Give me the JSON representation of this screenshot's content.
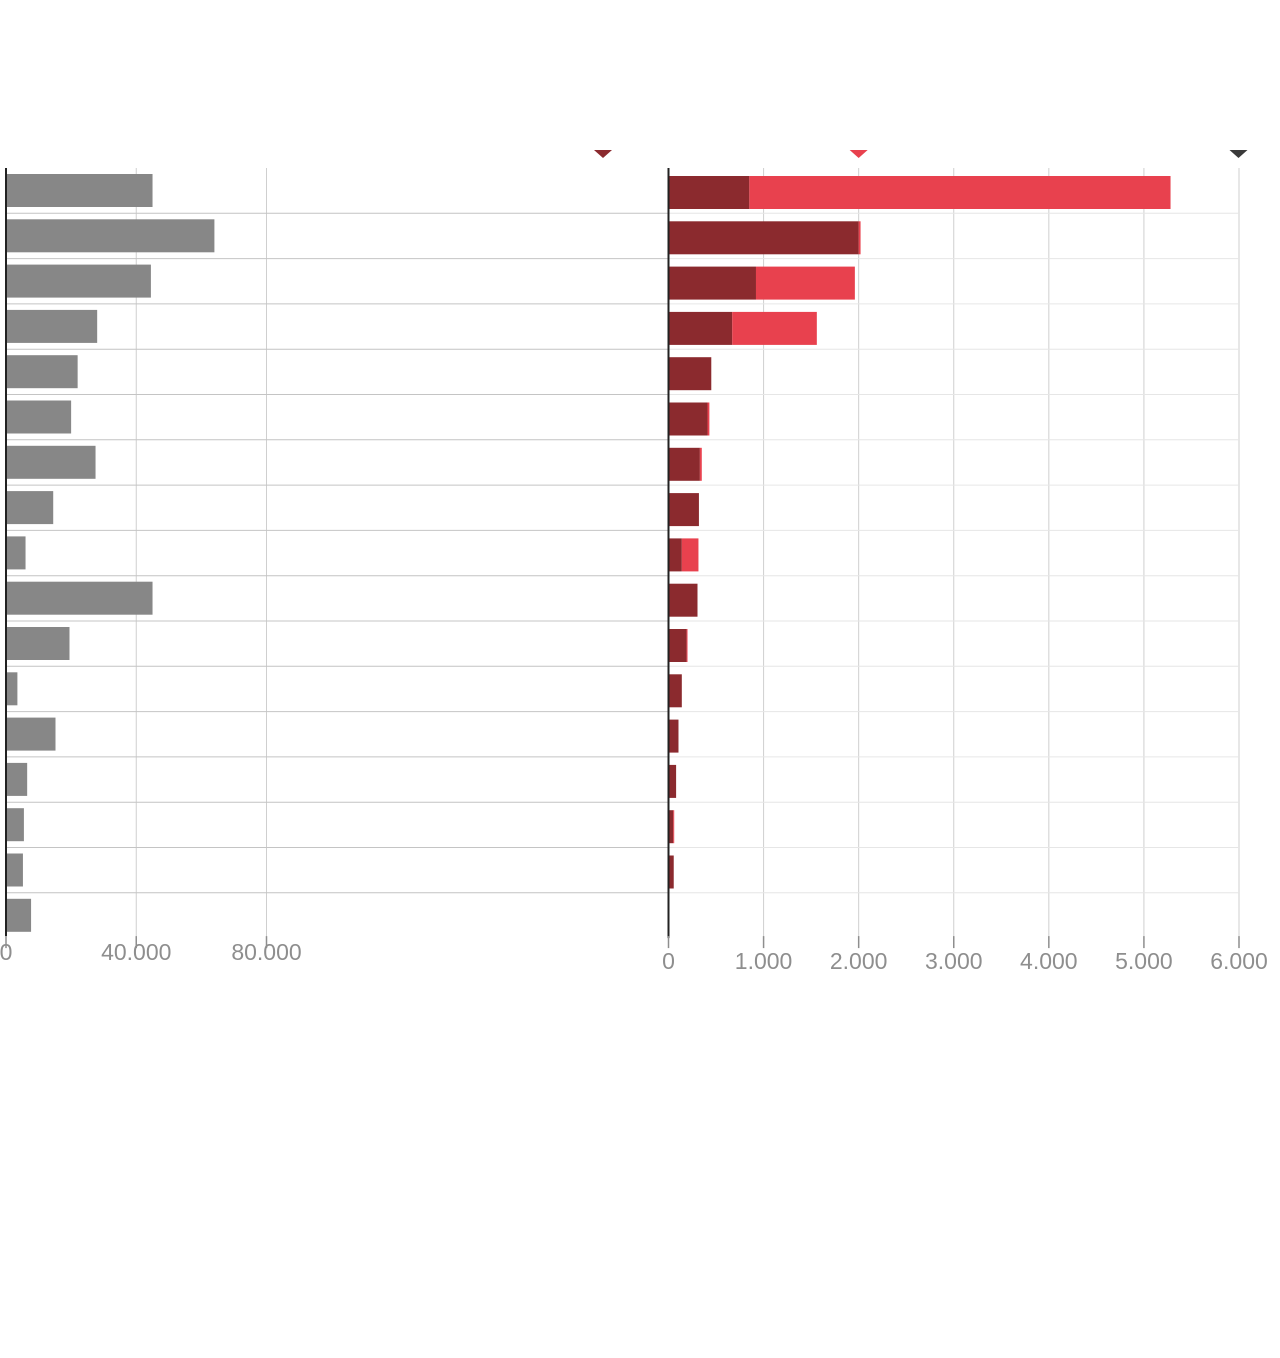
{
  "chart_data": [
    {
      "type": "bar",
      "orientation": "horizontal",
      "title": "",
      "xlabel": "",
      "ylabel": "",
      "xlim": [
        0,
        200000
      ],
      "xticks": [
        0,
        40000,
        80000
      ],
      "tick_labels": [
        "0",
        "40.000",
        "80.000"
      ],
      "grid": true,
      "series": [
        {
          "color": "#878787",
          "values": [
            45000,
            64000,
            44500,
            28000,
            22000,
            20000,
            27500,
            14500,
            6000,
            45000,
            19500,
            3500,
            15200,
            6500,
            5500,
            5200,
            7700
          ]
        }
      ]
    },
    {
      "type": "bar",
      "orientation": "horizontal",
      "stacked": true,
      "title": "",
      "xlabel": "",
      "ylabel": "",
      "xlim": [
        0,
        6000
      ],
      "xticks": [
        0,
        1000,
        2000,
        3000,
        4000,
        5000,
        6000
      ],
      "tick_labels": [
        "0",
        "1.000",
        "2.000",
        "3.000",
        "4.000",
        "5.000",
        "6.000"
      ],
      "grid": true,
      "markers": [
        {
          "color": "#8b2a2e"
        },
        {
          "value": 2000,
          "color": "#e8414e"
        },
        {
          "value": 6000,
          "color": "#3a3a3a"
        }
      ],
      "series": [
        {
          "color": "#8b2a2e",
          "values": [
            850,
            2000,
            920,
            670,
            450,
            410,
            330,
            320,
            140,
            305,
            190,
            140,
            105,
            80,
            50,
            55,
            10
          ]
        },
        {
          "color": "#e8414e",
          "values": [
            4430,
            20,
            1040,
            890,
            0,
            20,
            20,
            0,
            175,
            0,
            10,
            0,
            0,
            0,
            10,
            0,
            0
          ]
        }
      ]
    }
  ]
}
